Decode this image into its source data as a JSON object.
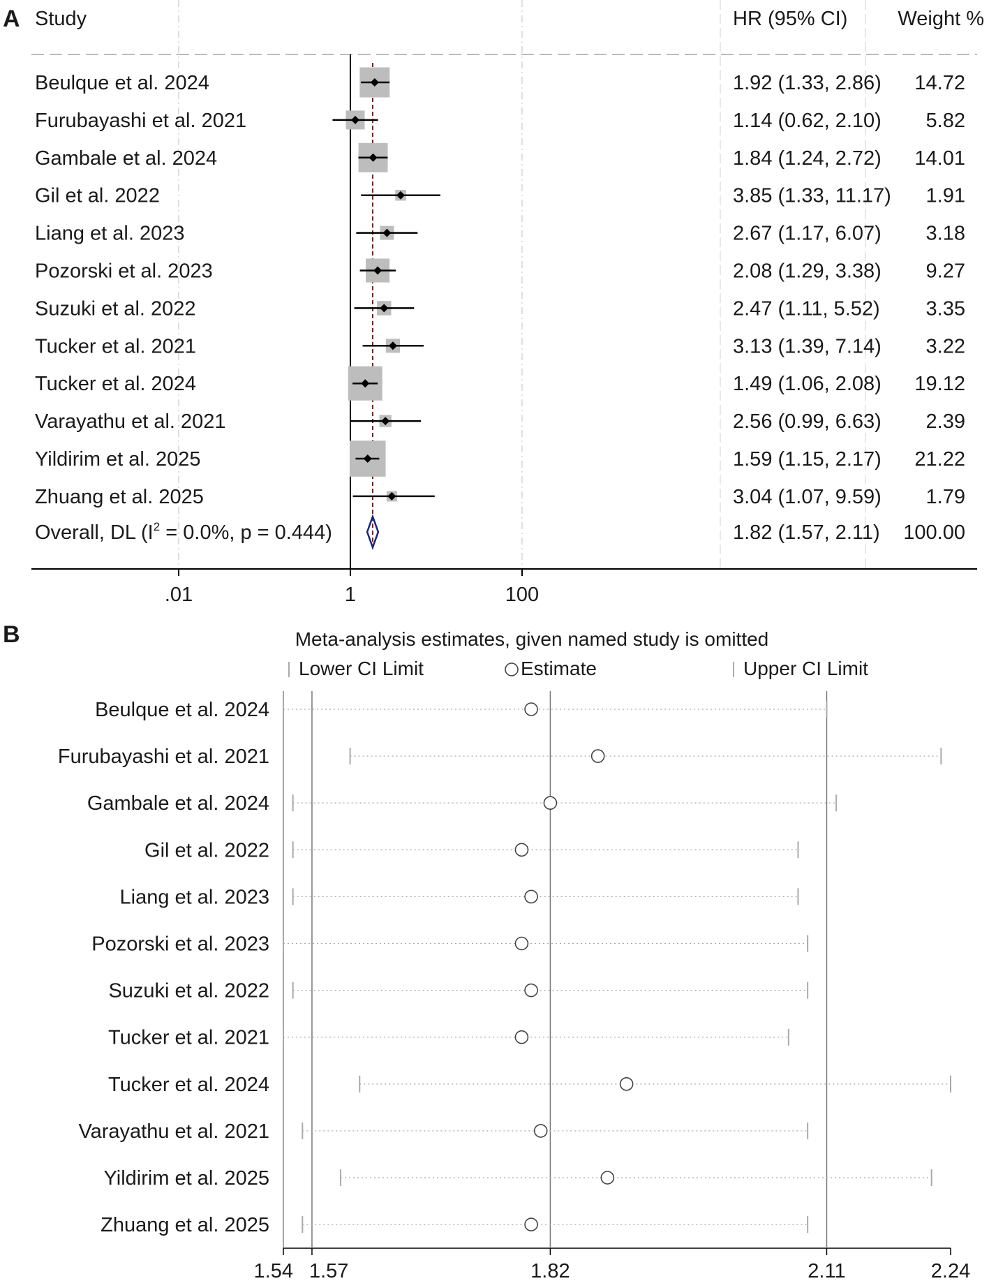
{
  "chart_data": [
    {
      "type": "forest",
      "panel_label": "A",
      "x_scale": "log10",
      "xlim": [
        0.0001,
        20000000
      ],
      "x_ticks": [
        {
          "value": 0.01,
          "label": ".01"
        },
        {
          "value": 1,
          "label": "1"
        },
        {
          "value": 100,
          "label": "100"
        }
      ],
      "headers": {
        "study": "Study",
        "effect": "HR (95% CI)",
        "weight": "Weight %"
      },
      "null_value": 1,
      "studies": [
        {
          "label": "Beulque et al. 2024",
          "hr": 1.92,
          "lower": 1.33,
          "upper": 2.86,
          "weight": 14.72,
          "ci_text": "1.92 (1.33, 2.86)",
          "weight_text": "14.72"
        },
        {
          "label": "Furubayashi et al. 2021",
          "hr": 1.14,
          "lower": 0.62,
          "upper": 2.1,
          "weight": 5.82,
          "ci_text": "1.14 (0.62, 2.10)",
          "weight_text": "5.82"
        },
        {
          "label": "Gambale et al. 2024",
          "hr": 1.84,
          "lower": 1.24,
          "upper": 2.72,
          "weight": 14.01,
          "ci_text": "1.84 (1.24, 2.72)",
          "weight_text": "14.01"
        },
        {
          "label": "Gil et al. 2022",
          "hr": 3.85,
          "lower": 1.33,
          "upper": 11.17,
          "weight": 1.91,
          "ci_text": "3.85 (1.33, 11.17)",
          "weight_text": "1.91"
        },
        {
          "label": "Liang et al. 2023",
          "hr": 2.67,
          "lower": 1.17,
          "upper": 6.07,
          "weight": 3.18,
          "ci_text": "2.67 (1.17, 6.07)",
          "weight_text": "3.18"
        },
        {
          "label": "Pozorski et al. 2023",
          "hr": 2.08,
          "lower": 1.29,
          "upper": 3.38,
          "weight": 9.27,
          "ci_text": "2.08 (1.29, 3.38)",
          "weight_text": "9.27"
        },
        {
          "label": "Suzuki et al. 2022",
          "hr": 2.47,
          "lower": 1.11,
          "upper": 5.52,
          "weight": 3.35,
          "ci_text": "2.47 (1.11, 5.52)",
          "weight_text": "3.35"
        },
        {
          "label": "Tucker et al. 2021",
          "hr": 3.13,
          "lower": 1.39,
          "upper": 7.14,
          "weight": 3.22,
          "ci_text": "3.13 (1.39, 7.14)",
          "weight_text": "3.22"
        },
        {
          "label": "Tucker et al. 2024",
          "hr": 1.49,
          "lower": 1.06,
          "upper": 2.08,
          "weight": 19.12,
          "ci_text": "1.49 (1.06, 2.08)",
          "weight_text": "19.12"
        },
        {
          "label": "Varayathu et al. 2021",
          "hr": 2.56,
          "lower": 0.99,
          "upper": 6.63,
          "weight": 2.39,
          "ci_text": "2.56 (0.99, 6.63)",
          "weight_text": "2.39"
        },
        {
          "label": "Yildirim et al. 2025",
          "hr": 1.59,
          "lower": 1.15,
          "upper": 2.17,
          "weight": 21.22,
          "ci_text": "1.59 (1.15, 2.17)",
          "weight_text": "21.22"
        },
        {
          "label": "Zhuang et al. 2025",
          "hr": 3.04,
          "lower": 1.07,
          "upper": 9.59,
          "weight": 1.79,
          "ci_text": "3.04 (1.07, 9.59)",
          "weight_text": "1.79"
        }
      ],
      "overall": {
        "label_prefix": "Overall, DL (I",
        "label_sup": "2",
        "label_suffix": " = 0.0%, p = 0.444)",
        "hr": 1.82,
        "lower": 1.57,
        "upper": 2.11,
        "ci_text": "1.82 (1.57, 2.11)",
        "weight_text": "100.00"
      },
      "colors": {
        "box": "#bdbdbd",
        "ci": "#000000",
        "diamond": "#1a237e",
        "overall_line": "#8b1a1a",
        "divider": "#bbbbbb"
      }
    },
    {
      "type": "sensitivity",
      "panel_label": "B",
      "title": "Meta-analysis estimates, given named study is omitted",
      "legend": {
        "lower": "Lower CI Limit",
        "estimate": "Estimate",
        "upper": "Upper CI Limit"
      },
      "xlim": [
        1.54,
        2.24
      ],
      "x_ticks": [
        {
          "value": 1.54,
          "label": "1.54"
        },
        {
          "value": 1.57,
          "label": "1.57"
        },
        {
          "value": 1.82,
          "label": "1.82"
        },
        {
          "value": 2.11,
          "label": "2.11"
        },
        {
          "value": 2.24,
          "label": "2.24"
        }
      ],
      "reference_lines": [
        1.57,
        1.82,
        2.11
      ],
      "omitted": [
        {
          "label": "Beulque et al. 2024",
          "estimate": 1.8,
          "lower": 1.54,
          "upper": 2.11
        },
        {
          "label": "Furubayashi et al. 2021",
          "estimate": 1.87,
          "lower": 1.61,
          "upper": 2.23
        },
        {
          "label": "Gambale et al. 2024",
          "estimate": 1.82,
          "lower": 1.55,
          "upper": 2.12
        },
        {
          "label": "Gil et al. 2022",
          "estimate": 1.79,
          "lower": 1.55,
          "upper": 2.08
        },
        {
          "label": "Liang et al. 2023",
          "estimate": 1.8,
          "lower": 1.55,
          "upper": 2.08
        },
        {
          "label": "Pozorski et al. 2023",
          "estimate": 1.79,
          "lower": 1.54,
          "upper": 2.09
        },
        {
          "label": "Suzuki et al. 2022",
          "estimate": 1.8,
          "lower": 1.55,
          "upper": 2.09
        },
        {
          "label": "Tucker et al. 2021",
          "estimate": 1.79,
          "lower": 1.54,
          "upper": 2.07
        },
        {
          "label": "Tucker et al. 2024",
          "estimate": 1.9,
          "lower": 1.62,
          "upper": 2.24
        },
        {
          "label": "Varayathu et al. 2021",
          "estimate": 1.81,
          "lower": 1.56,
          "upper": 2.09
        },
        {
          "label": "Yildirim et al. 2025",
          "estimate": 1.88,
          "lower": 1.6,
          "upper": 2.22
        },
        {
          "label": "Zhuang et al. 2025",
          "estimate": 1.8,
          "lower": 1.56,
          "upper": 2.09
        }
      ],
      "colors": {
        "ci": "#aaaaaa",
        "marker": "#444444",
        "ref_line": "#777777",
        "frame": "#888888"
      }
    }
  ]
}
